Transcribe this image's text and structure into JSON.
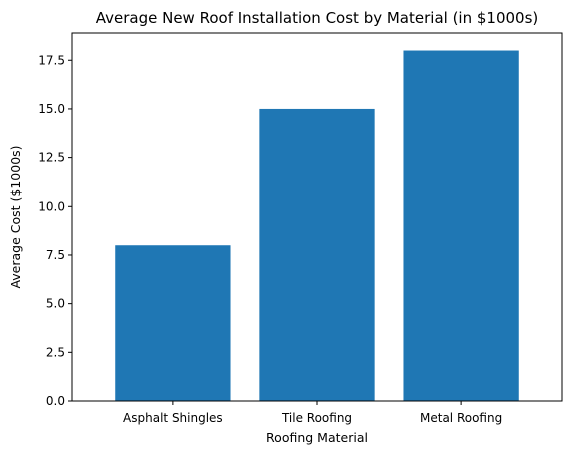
{
  "chart_data": {
    "type": "bar",
    "title": "Average New Roof Installation Cost by Material (in $1000s)",
    "xlabel": "Roofing Material",
    "ylabel": "Average Cost ($1000s)",
    "categories": [
      "Asphalt Shingles",
      "Tile Roofing",
      "Metal Roofing"
    ],
    "values": [
      8,
      15,
      18
    ],
    "ylim": [
      0,
      18.9
    ],
    "yticks": [
      "0.0",
      "2.5",
      "5.0",
      "7.5",
      "10.0",
      "12.5",
      "15.0",
      "17.5"
    ],
    "bar_color": "#1f77b4",
    "grid": false,
    "legend": "none"
  }
}
